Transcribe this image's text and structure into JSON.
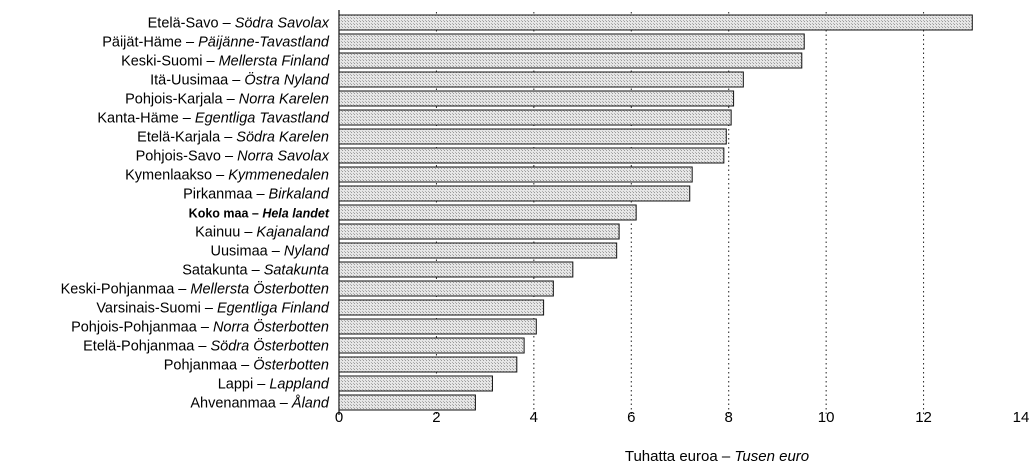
{
  "chart_data": {
    "type": "bar",
    "orientation": "horizontal",
    "categories": [
      {
        "fi": "Etelä-Savo",
        "sv": "Södra Savolax"
      },
      {
        "fi": "Päijät-Häme",
        "sv": "Päijänne-Tavastland"
      },
      {
        "fi": "Keski-Suomi",
        "sv": "Mellersta Finland"
      },
      {
        "fi": "Itä-Uusimaa",
        "sv": "Östra Nyland"
      },
      {
        "fi": "Pohjois-Karjala",
        "sv": "Norra Karelen"
      },
      {
        "fi": "Kanta-Häme",
        "sv": "Egentliga Tavastland"
      },
      {
        "fi": "Etelä-Karjala",
        "sv": "Södra Karelen"
      },
      {
        "fi": "Pohjois-Savo",
        "sv": "Norra Savolax"
      },
      {
        "fi": "Kymenlaakso",
        "sv": "Kymmenedalen"
      },
      {
        "fi": "Pirkanmaa",
        "sv": "Birkaland"
      },
      {
        "fi": "Koko maa",
        "sv": "Hela landet",
        "bold": true
      },
      {
        "fi": "Kainuu",
        "sv": "Kajanaland"
      },
      {
        "fi": "Uusimaa",
        "sv": "Nyland"
      },
      {
        "fi": "Satakunta",
        "sv": "Satakunta"
      },
      {
        "fi": "Keski-Pohjanmaa",
        "sv": "Mellersta Österbotten"
      },
      {
        "fi": "Varsinais-Suomi",
        "sv": "Egentliga Finland"
      },
      {
        "fi": "Pohjois-Pohjanmaa",
        "sv": "Norra Österbotten"
      },
      {
        "fi": "Etelä-Pohjanmaa",
        "sv": "Södra Österbotten"
      },
      {
        "fi": "Pohjanmaa",
        "sv": "Österbotten"
      },
      {
        "fi": "Lappi",
        "sv": "Lappland"
      },
      {
        "fi": "Ahvenanmaa",
        "sv": "Åland"
      }
    ],
    "values": [
      13.0,
      9.55,
      9.5,
      8.3,
      8.1,
      8.05,
      7.95,
      7.9,
      7.25,
      7.2,
      6.1,
      5.75,
      5.7,
      4.8,
      4.4,
      4.2,
      4.05,
      3.8,
      3.65,
      3.15,
      2.8
    ],
    "xlabel_fi": "Tuhatta euroa",
    "xlabel_sv": "Tusen euro",
    "xlim": [
      0,
      14
    ],
    "xticks": [
      "0",
      "2",
      "4",
      "6",
      "8",
      "10",
      "12",
      "14"
    ],
    "grid": "vertical dotted",
    "separator": "–",
    "bar_fill": "#d9d9d9",
    "bar_stroke": "#111111"
  }
}
